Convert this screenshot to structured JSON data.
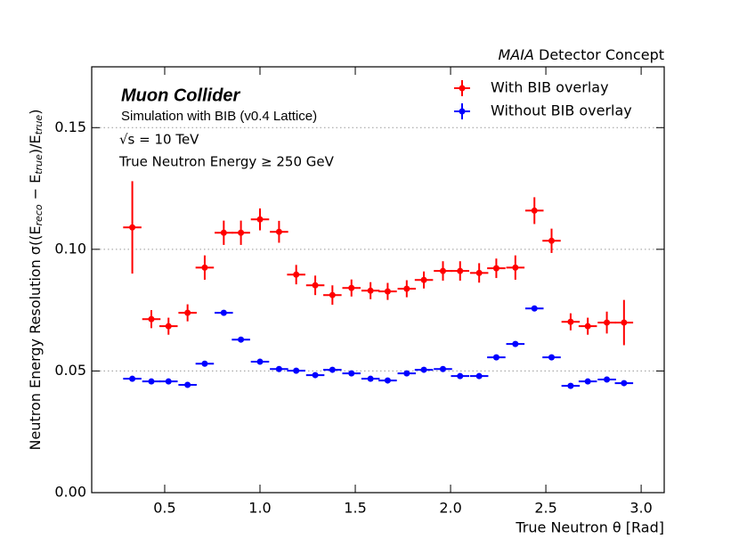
{
  "chart_data": {
    "type": "errorbar",
    "header_italic": "MAIA",
    "header": "Detector Concept",
    "annotations": [
      "Muon Collider",
      "Simulation with BIB (v0.4 Lattice)",
      "√s = 10 TeV",
      "True Neutron Energy ≥ 250 GeV"
    ],
    "xlabel": "True Neutron θ [Rad]",
    "ylabel": "Neutron Energy Resolution σ((E_{reco} − E_{true})/E_{true})",
    "x": [
      0.33,
      0.43,
      0.52,
      0.62,
      0.71,
      0.81,
      0.9,
      1.0,
      1.1,
      1.19,
      1.29,
      1.38,
      1.48,
      1.58,
      1.67,
      1.77,
      1.86,
      1.96,
      2.05,
      2.15,
      2.24,
      2.34,
      2.44,
      2.53,
      2.63,
      2.72,
      2.82,
      2.91
    ],
    "xerr": 0.048,
    "series": [
      {
        "name": "With BIB overlay",
        "color": "#ff0000",
        "values": [
          0.109,
          0.0713,
          0.0684,
          0.0739,
          0.0925,
          0.1068,
          0.1068,
          0.1123,
          0.1072,
          0.0896,
          0.0852,
          0.0812,
          0.0841,
          0.083,
          0.0827,
          0.0838,
          0.0874,
          0.0911,
          0.0911,
          0.0903,
          0.0922,
          0.0925,
          0.1159,
          0.1035,
          0.0702,
          0.0684,
          0.0699,
          0.0699
        ],
        "errors": [
          0.019,
          0.0037,
          0.0035,
          0.0035,
          0.005,
          0.005,
          0.005,
          0.0045,
          0.0045,
          0.004,
          0.004,
          0.004,
          0.0035,
          0.0035,
          0.0035,
          0.0035,
          0.0035,
          0.004,
          0.004,
          0.004,
          0.004,
          0.005,
          0.0055,
          0.005,
          0.0035,
          0.0035,
          0.0045,
          0.0093
        ]
      },
      {
        "name": "Without BIB overlay",
        "color": "#0000ff",
        "values": [
          0.0468,
          0.0457,
          0.0457,
          0.0443,
          0.053,
          0.0739,
          0.0629,
          0.0538,
          0.0508,
          0.0501,
          0.0483,
          0.0505,
          0.049,
          0.0468,
          0.0461,
          0.049,
          0.0505,
          0.0508,
          0.0479,
          0.0479,
          0.0556,
          0.0611,
          0.0757,
          0.0556,
          0.0439,
          0.0457,
          0.0465,
          0.045
        ],
        "errors": [
          0.0006,
          0.0006,
          0.0006,
          0.0006,
          0.0006,
          0.0006,
          0.0006,
          0.0006,
          0.0006,
          0.0006,
          0.0006,
          0.0006,
          0.0006,
          0.0006,
          0.0006,
          0.0006,
          0.0006,
          0.0006,
          0.0006,
          0.0006,
          0.0006,
          0.0006,
          0.0006,
          0.0006,
          0.0006,
          0.0006,
          0.0006,
          0.0006
        ]
      }
    ],
    "xlim": [
      0.117,
      3.121
    ],
    "ylim": [
      0,
      0.175
    ],
    "xticks": [
      0.5,
      {
        "value": 1.0,
        "label": "1.0"
      },
      1.5,
      {
        "value": 2.0,
        "label": "2.0"
      },
      2.5,
      {
        "value": 3.0,
        "label": "3.0"
      }
    ],
    "yticks": [
      {
        "value": 0,
        "label": "0.00"
      },
      {
        "value": 0.05,
        "label": "0.05"
      },
      {
        "value": 0.1,
        "label": "0.10"
      },
      {
        "value": 0.15,
        "label": "0.15"
      }
    ],
    "grid": "y",
    "legend": "upper right"
  }
}
